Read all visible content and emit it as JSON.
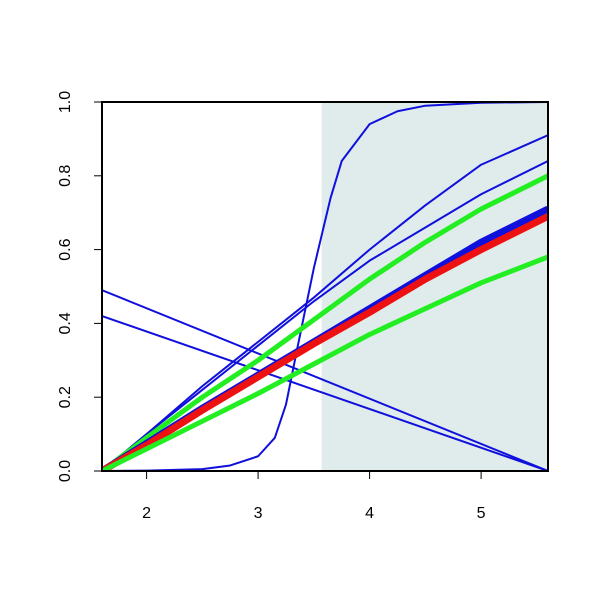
{
  "chart_data": {
    "type": "line",
    "xlim": [
      1.6,
      5.6
    ],
    "ylim": [
      0,
      1
    ],
    "xticks": [
      2,
      3,
      4,
      5
    ],
    "yticks": [
      {
        "value": 0,
        "label": "0.0"
      },
      {
        "value": 0.2,
        "label": "0.2"
      },
      {
        "value": 0.4,
        "label": "0.4"
      },
      {
        "value": 0.6,
        "label": "0.6"
      },
      {
        "value": 0.8,
        "label": "0.8"
      },
      {
        "value": 1,
        "label": "1.0"
      }
    ],
    "shade": {
      "xlim": [
        3.57,
        5.6
      ],
      "color": "#e0ecec"
    },
    "series": [
      {
        "color": "#1010dd",
        "width": 2,
        "x": [
          1.6,
          2,
          2.5,
          2.75,
          3,
          3.15,
          3.25,
          3.35,
          3.5,
          3.65,
          3.75,
          4,
          4.25,
          4.5,
          5,
          5.6
        ],
        "values": [
          0,
          0.001,
          0.005,
          0.015,
          0.04,
          0.09,
          0.18,
          0.33,
          0.55,
          0.74,
          0.84,
          0.94,
          0.975,
          0.99,
          0.998,
          1
        ]
      },
      {
        "color": "#1010dd",
        "width": 2,
        "x": [
          1.6,
          5.6
        ],
        "values": [
          0.49,
          0
        ]
      },
      {
        "color": "#1010dd",
        "width": 2,
        "x": [
          1.6,
          5.6
        ],
        "values": [
          0.42,
          0
        ]
      },
      {
        "color": "#1010dd",
        "width": 2,
        "x": [
          1.6,
          2,
          2.5,
          3,
          3.5,
          4,
          4.5,
          5,
          5.6
        ],
        "values": [
          0,
          0.1,
          0.23,
          0.35,
          0.47,
          0.6,
          0.72,
          0.83,
          0.91
        ]
      },
      {
        "color": "#1010dd",
        "width": 2,
        "x": [
          1.6,
          2,
          2.5,
          3,
          3.5,
          4,
          4.5,
          5,
          5.6
        ],
        "values": [
          0,
          0.1,
          0.22,
          0.34,
          0.46,
          0.57,
          0.66,
          0.75,
          0.84
        ]
      },
      {
        "color": "#22ee22",
        "width": 5,
        "x": [
          1.6,
          2,
          2.5,
          3,
          3.5,
          4,
          4.5,
          5,
          5.6
        ],
        "values": [
          0,
          0.09,
          0.2,
          0.3,
          0.41,
          0.52,
          0.62,
          0.71,
          0.8
        ]
      },
      {
        "color": "#1010dd",
        "width": 7,
        "x": [
          1.6,
          2,
          2.5,
          3,
          3.5,
          4,
          4.5,
          5,
          5.6
        ],
        "values": [
          0,
          0.075,
          0.17,
          0.26,
          0.35,
          0.44,
          0.53,
          0.62,
          0.71
        ]
      },
      {
        "color": "#ee1111",
        "width": 7,
        "x": [
          1.6,
          2,
          2.5,
          3,
          3.5,
          4,
          4.5,
          5,
          5.6
        ],
        "values": [
          0,
          0.07,
          0.165,
          0.255,
          0.345,
          0.43,
          0.52,
          0.6,
          0.69
        ]
      },
      {
        "color": "#22ee22",
        "width": 5,
        "x": [
          1.6,
          2,
          2.5,
          3,
          3.5,
          4,
          4.5,
          5,
          5.6
        ],
        "values": [
          0,
          0.06,
          0.135,
          0.21,
          0.29,
          0.37,
          0.44,
          0.51,
          0.58
        ]
      }
    ]
  }
}
